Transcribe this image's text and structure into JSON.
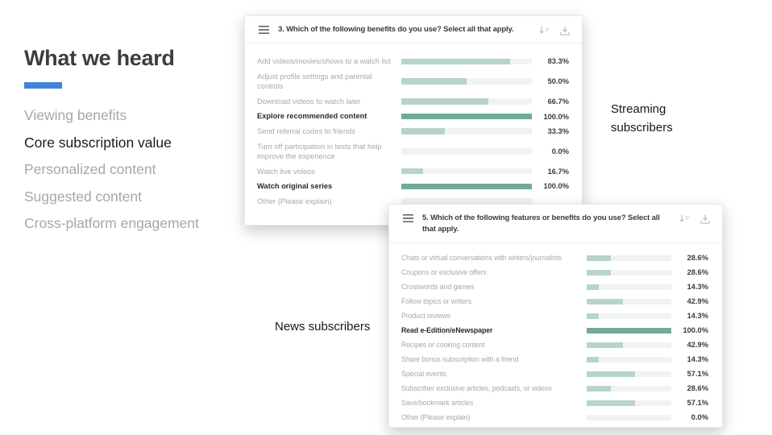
{
  "slide": {
    "title": "What we heard",
    "accent_color": "#4285d6",
    "menu": [
      {
        "label": "Viewing benefits",
        "active": false
      },
      {
        "label": "Core subscription value",
        "active": true
      },
      {
        "label": "Personalized content",
        "active": false
      },
      {
        "label": "Suggested content",
        "active": false
      },
      {
        "label": "Cross-platform engagement",
        "active": false
      }
    ],
    "annotations": {
      "streaming": "Streaming subscribers",
      "news": "News subscribers"
    }
  },
  "icons": {
    "card_header_left": "list-icon",
    "card_header_sort": "sort-descending-icon",
    "card_header_download": "download-icon"
  },
  "colors": {
    "bar_fill": "#b7d4c8",
    "bar_fill_highlight": "#6fac98",
    "bar_track": "#f1f3f2",
    "accent": "#4285d6"
  },
  "chart_data": [
    {
      "type": "bar",
      "orientation": "horizontal",
      "title": "3. Which of the following benefits do you use? Select all that apply.",
      "group_label": "Streaming subscribers",
      "xlim": [
        0,
        100
      ],
      "categories": [
        "Add videos/movies/shows to a watch list",
        "Adjust profile settings and parental controls",
        "Download videos to watch later",
        "Explore recommended content",
        "Send referral codes to friends",
        "Turn off participation in tests that help improve the experience",
        "Watch live videos",
        "Watch original series",
        "Other (Please explain)"
      ],
      "values": [
        83.3,
        50.0,
        66.7,
        100.0,
        33.3,
        0.0,
        16.7,
        100.0,
        null
      ],
      "value_labels": [
        "83.3%",
        "50.0%",
        "66.7%",
        "100.0%",
        "33.3%",
        "0.0%",
        "16.7%",
        "100.0%",
        ""
      ],
      "bold": [
        false,
        false,
        false,
        true,
        false,
        false,
        false,
        true,
        false
      ]
    },
    {
      "type": "bar",
      "orientation": "horizontal",
      "title": "5. Which of the following features or benefits do you use? Select all that apply.",
      "group_label": "News subscribers",
      "xlim": [
        0,
        100
      ],
      "categories": [
        "Chats or virtual conversations with writers/journalists",
        "Coupons or exclusive offers",
        "Crosswords and games",
        "Follow topics or writers",
        "Product reviews",
        "Read e-Edition/eNewspaper",
        "Recipes or cooking content",
        "Share bonus subscription with a friend",
        "Special events",
        "Subscriber exclusive articles, podcasts, or videos",
        "Save/bookmark articles",
        "Other (Please explain)"
      ],
      "values": [
        28.6,
        28.6,
        14.3,
        42.9,
        14.3,
        100.0,
        42.9,
        14.3,
        57.1,
        28.6,
        57.1,
        0.0
      ],
      "value_labels": [
        "28.6%",
        "28.6%",
        "14.3%",
        "42.9%",
        "14.3%",
        "100.0%",
        "42.9%",
        "14.3%",
        "57.1%",
        "28.6%",
        "57.1%",
        "0.0%"
      ],
      "bold": [
        false,
        false,
        false,
        false,
        false,
        true,
        false,
        false,
        false,
        false,
        false,
        false
      ]
    }
  ]
}
